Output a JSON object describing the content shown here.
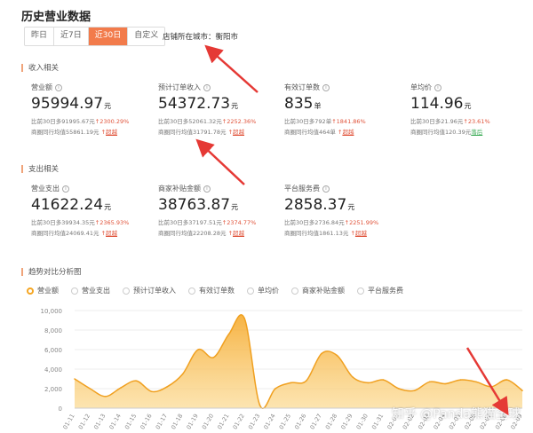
{
  "page_title": "历史营业数据",
  "period_tabs": [
    {
      "label": "昨日",
      "active": false
    },
    {
      "label": "近7日",
      "active": false
    },
    {
      "label": "近30日",
      "active": true
    },
    {
      "label": "自定义",
      "active": false
    }
  ],
  "store_city": "店铺所在城市：衡阳市",
  "income_section": "收入相关",
  "expense_section": "支出相关",
  "trend_section": "趋势对比分析图",
  "income_metrics": [
    {
      "label": "营业额",
      "value": "95994.97",
      "unit": "元",
      "compare_prefix": "比前30日多",
      "compare_value": "91995.67元",
      "change": "2300.29%",
      "peer": "商圈同行均值55861.19元",
      "badge": "超越"
    },
    {
      "label": "预计订单收入",
      "value": "54372.73",
      "unit": "元",
      "compare_prefix": "比前30日多",
      "compare_value": "52061.32元",
      "change": "2252.36%",
      "peer": "商圈同行均值31791.78元",
      "badge": "超越"
    },
    {
      "label": "有效订单数",
      "value": "835",
      "unit": "单",
      "compare_prefix": "比前30日多",
      "compare_value": "792单",
      "change": "1841.86%",
      "peer": "商圈同行均值464单",
      "badge": "超越"
    },
    {
      "label": "单均价",
      "value": "114.96",
      "unit": "元",
      "compare_prefix": "比前30日多",
      "compare_value": "21.96元",
      "change": "23.61%",
      "peer": "商圈同行均值120.39元",
      "badge": "落后"
    }
  ],
  "expense_metrics": [
    {
      "label": "营业支出",
      "value": "41622.24",
      "unit": "元",
      "compare_prefix": "比前30日多",
      "compare_value": "39934.35元",
      "change": "2365.93%",
      "peer": "商圈同行均值24069.41元",
      "badge": "超越"
    },
    {
      "label": "商家补贴金额",
      "value": "38763.87",
      "unit": "元",
      "compare_prefix": "比前30日多",
      "compare_value": "37197.51元",
      "change": "2374.77%",
      "peer": "商圈同行均值22208.28元",
      "badge": "超越"
    },
    {
      "label": "平台服务费",
      "value": "2858.37",
      "unit": "元",
      "compare_prefix": "比前30日多",
      "compare_value": "2736.84元",
      "change": "2251.99%",
      "peer": "商圈同行均值1861.13元",
      "badge": "超越"
    }
  ],
  "legend": [
    {
      "label": "营业额",
      "active": true
    },
    {
      "label": "营业支出",
      "active": false
    },
    {
      "label": "预计订单收入",
      "active": false
    },
    {
      "label": "有效订单数",
      "active": false
    },
    {
      "label": "单均价",
      "active": false
    },
    {
      "label": "商家补贴金额",
      "active": false
    },
    {
      "label": "平台服务费",
      "active": false
    }
  ],
  "watermark": "知乎 @Panda熊猫全球",
  "colors": {
    "accent": "#f27b4b",
    "line": "#f5a623",
    "up": "#e0533a",
    "low": "#3aaa55",
    "arrow": "#e53935"
  },
  "chart_data": {
    "type": "area",
    "x": [
      "01-11",
      "01-12",
      "01-13",
      "01-14",
      "01-15",
      "01-16",
      "01-17",
      "01-18",
      "01-19",
      "01-20",
      "01-21",
      "01-22",
      "01-23",
      "01-24",
      "01-25",
      "01-26",
      "01-27",
      "01-28",
      "01-29",
      "01-30",
      "01-31",
      "02-01",
      "02-02",
      "02-03",
      "02-04",
      "02-05",
      "02-06",
      "02-07",
      "02-08",
      "02-09"
    ],
    "series": [
      {
        "values": [
          3000,
          2000,
          1200,
          2100,
          2800,
          1700,
          2200,
          3500,
          6000,
          5200,
          7600,
          9200,
          300,
          2000,
          2600,
          2800,
          5600,
          5400,
          3200,
          2600,
          2900,
          2000,
          1800,
          2700,
          2500,
          2900,
          2700,
          2200,
          2900,
          1800
        ]
      }
    ],
    "ylim": [
      0,
      10000
    ],
    "yticks": [
      "0",
      "2,000",
      "4,000",
      "6,000",
      "8,000",
      "10,000"
    ],
    "ytick_values": [
      0,
      2000,
      4000,
      6000,
      8000,
      10000
    ],
    "grid": true
  }
}
